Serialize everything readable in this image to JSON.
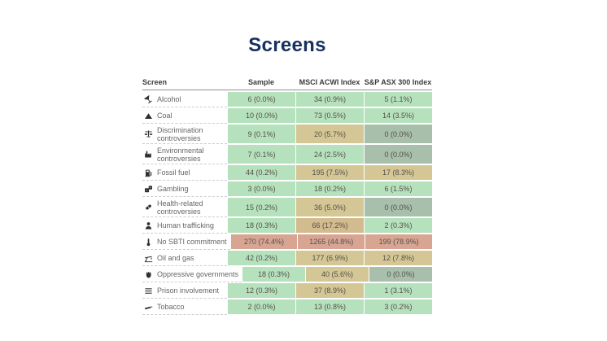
{
  "page": {
    "title": "Screens"
  },
  "palette": {
    "title_color": "#16305f",
    "green": "#b6e1bd",
    "tan": "#d4c795",
    "tan_dark": "#d2bb8e",
    "sage": "#a7bfab",
    "salmon": "#d8a593"
  },
  "table": {
    "columns": [
      "Screen",
      "Sample",
      "MSCI ACWI Index",
      "S&P ASX 300 Index"
    ],
    "rows": [
      {
        "label": "Alcohol",
        "icon": "alcohol-icon",
        "wrap": false,
        "cells": [
          {
            "text": "6 (0.0%)",
            "color": "green"
          },
          {
            "text": "34 (0.9%)",
            "color": "green"
          },
          {
            "text": "5 (1.1%)",
            "color": "green"
          }
        ]
      },
      {
        "label": "Coal",
        "icon": "coal-icon",
        "wrap": false,
        "cells": [
          {
            "text": "10 (0.0%)",
            "color": "green"
          },
          {
            "text": "73 (0.5%)",
            "color": "green"
          },
          {
            "text": "14 (3.5%)",
            "color": "green"
          }
        ]
      },
      {
        "label": "Discrimination controversies",
        "icon": "scales-icon",
        "wrap": true,
        "cells": [
          {
            "text": "9 (0.1%)",
            "color": "green"
          },
          {
            "text": "20 (5.7%)",
            "color": "tan"
          },
          {
            "text": "0 (0.0%)",
            "color": "sage"
          }
        ]
      },
      {
        "label": "Environmental controversies",
        "icon": "factory-icon",
        "wrap": true,
        "cells": [
          {
            "text": "7 (0.1%)",
            "color": "green"
          },
          {
            "text": "24 (2.5%)",
            "color": "green"
          },
          {
            "text": "0 (0.0%)",
            "color": "sage"
          }
        ]
      },
      {
        "label": "Fossil fuel",
        "icon": "fuel-pump-icon",
        "wrap": false,
        "cells": [
          {
            "text": "44 (0.2%)",
            "color": "green"
          },
          {
            "text": "195 (7.5%)",
            "color": "tan"
          },
          {
            "text": "17 (8.3%)",
            "color": "tan"
          }
        ]
      },
      {
        "label": "Gambling",
        "icon": "dice-icon",
        "wrap": false,
        "cells": [
          {
            "text": "3 (0.0%)",
            "color": "green"
          },
          {
            "text": "18 (0.2%)",
            "color": "green"
          },
          {
            "text": "6 (1.5%)",
            "color": "green"
          }
        ]
      },
      {
        "label": "Health-related controversies",
        "icon": "pill-icon",
        "wrap": true,
        "cells": [
          {
            "text": "15 (0.2%)",
            "color": "green"
          },
          {
            "text": "36 (5.0%)",
            "color": "tan"
          },
          {
            "text": "0 (0.0%)",
            "color": "sage"
          }
        ]
      },
      {
        "label": "Human trafficking",
        "icon": "person-icon",
        "wrap": false,
        "cells": [
          {
            "text": "18 (0.3%)",
            "color": "green"
          },
          {
            "text": "66 (17.2%)",
            "color": "tan_dark"
          },
          {
            "text": "2 (0.3%)",
            "color": "green"
          }
        ]
      },
      {
        "label": "No SBTI commitment",
        "icon": "thermometer-icon",
        "wrap": false,
        "cells": [
          {
            "text": "270 (74.4%)",
            "color": "salmon"
          },
          {
            "text": "1265 (44.8%)",
            "color": "salmon"
          },
          {
            "text": "199 (78.9%)",
            "color": "salmon"
          }
        ]
      },
      {
        "label": "Oil and gas",
        "icon": "pumpjack-icon",
        "wrap": false,
        "cells": [
          {
            "text": "42 (0.2%)",
            "color": "green"
          },
          {
            "text": "177 (6.9%)",
            "color": "tan"
          },
          {
            "text": "12 (7.8%)",
            "color": "tan"
          }
        ]
      },
      {
        "label": "Oppressive governments",
        "icon": "fist-icon",
        "wrap": false,
        "cells": [
          {
            "text": "18 (0.3%)",
            "color": "green"
          },
          {
            "text": "40 (5.6%)",
            "color": "tan"
          },
          {
            "text": "0 (0.0%)",
            "color": "sage"
          }
        ]
      },
      {
        "label": "Prison involvement",
        "icon": "bars-icon",
        "wrap": false,
        "cells": [
          {
            "text": "12 (0.3%)",
            "color": "green"
          },
          {
            "text": "37 (8.9%)",
            "color": "tan"
          },
          {
            "text": "1 (3.1%)",
            "color": "green"
          }
        ]
      },
      {
        "label": "Tobacco",
        "icon": "cigarette-icon",
        "wrap": false,
        "cells": [
          {
            "text": "2 (0.0%)",
            "color": "green"
          },
          {
            "text": "13 (0.8%)",
            "color": "green"
          },
          {
            "text": "3 (0.2%)",
            "color": "green"
          }
        ]
      }
    ]
  }
}
